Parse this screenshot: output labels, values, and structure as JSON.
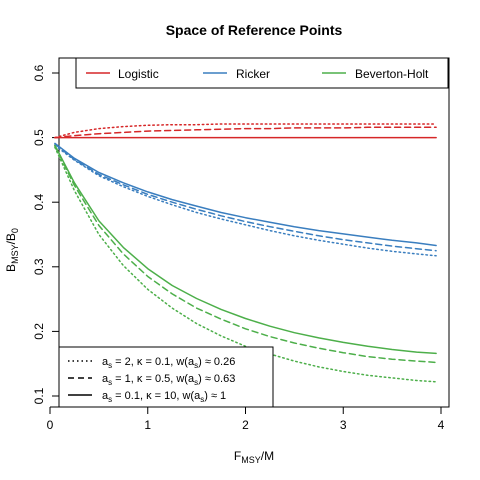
{
  "chart_data": {
    "type": "line",
    "title": "Space of Reference Points",
    "xlabel": "F_MSY/M",
    "ylabel": "B_MSY/B_0",
    "xlim": [
      0,
      4
    ],
    "ylim": [
      0.1,
      0.6
    ],
    "xticks": [
      "0",
      "1",
      "2",
      "3",
      "4"
    ],
    "yticks": [
      "0.1",
      "0.2",
      "0.3",
      "0.4",
      "0.5",
      "0.6"
    ],
    "x": [
      0.05,
      0.25,
      0.5,
      0.75,
      1.0,
      1.25,
      1.5,
      1.75,
      2.0,
      2.25,
      2.5,
      2.75,
      3.0,
      3.25,
      3.5,
      3.75,
      3.95
    ],
    "legend_models": {
      "position": "top",
      "entries": [
        {
          "name": "Logistic",
          "color": "#d62728"
        },
        {
          "name": "Ricker",
          "color": "#3a7ebf"
        },
        {
          "name": "Beverton-Holt",
          "color": "#4daf4a"
        }
      ]
    },
    "legend_linetypes": {
      "position": "bottom-left",
      "entries": [
        {
          "style": "dotted",
          "a": "2",
          "kappa": "0.1",
          "w": "0.26"
        },
        {
          "style": "dashed",
          "a": "1",
          "kappa": "0.5",
          "w": "0.63"
        },
        {
          "style": "solid",
          "a": "0.1",
          "kappa": "10",
          "w": "1"
        }
      ]
    },
    "series": [
      {
        "model": "Logistic",
        "style": "solid",
        "values": [
          0.5,
          0.5,
          0.5,
          0.5,
          0.5,
          0.5,
          0.5,
          0.5,
          0.5,
          0.5,
          0.5,
          0.5,
          0.5,
          0.5,
          0.5,
          0.5,
          0.5
        ]
      },
      {
        "model": "Logistic",
        "style": "dashed",
        "values": [
          0.5,
          0.503,
          0.506,
          0.508,
          0.51,
          0.511,
          0.512,
          0.513,
          0.514,
          0.514,
          0.515,
          0.515,
          0.515,
          0.516,
          0.516,
          0.516,
          0.516
        ]
      },
      {
        "model": "Logistic",
        "style": "dotted",
        "values": [
          0.5,
          0.508,
          0.514,
          0.517,
          0.519,
          0.52,
          0.52,
          0.521,
          0.521,
          0.521,
          0.521,
          0.521,
          0.521,
          0.521,
          0.521,
          0.521,
          0.521
        ]
      },
      {
        "model": "Ricker",
        "style": "solid",
        "values": [
          0.491,
          0.468,
          0.446,
          0.43,
          0.416,
          0.404,
          0.394,
          0.384,
          0.376,
          0.369,
          0.362,
          0.356,
          0.351,
          0.346,
          0.341,
          0.337,
          0.333
        ]
      },
      {
        "model": "Ricker",
        "style": "dashed",
        "values": [
          0.49,
          0.466,
          0.443,
          0.427,
          0.412,
          0.4,
          0.389,
          0.379,
          0.37,
          0.362,
          0.355,
          0.348,
          0.342,
          0.337,
          0.332,
          0.328,
          0.325
        ]
      },
      {
        "model": "Ricker",
        "style": "dotted",
        "values": [
          0.488,
          0.465,
          0.441,
          0.424,
          0.409,
          0.396,
          0.384,
          0.374,
          0.365,
          0.356,
          0.348,
          0.341,
          0.335,
          0.329,
          0.324,
          0.32,
          0.317
        ]
      },
      {
        "model": "Beverton-Holt",
        "style": "solid",
        "values": [
          0.488,
          0.43,
          0.371,
          0.33,
          0.297,
          0.271,
          0.251,
          0.234,
          0.22,
          0.208,
          0.198,
          0.19,
          0.183,
          0.177,
          0.172,
          0.168,
          0.166
        ]
      },
      {
        "model": "Beverton-Holt",
        "style": "dashed",
        "values": [
          0.487,
          0.426,
          0.364,
          0.32,
          0.285,
          0.258,
          0.236,
          0.219,
          0.204,
          0.192,
          0.182,
          0.174,
          0.167,
          0.161,
          0.157,
          0.154,
          0.152
        ]
      },
      {
        "model": "Beverton-Holt",
        "style": "dotted",
        "values": [
          0.485,
          0.418,
          0.35,
          0.302,
          0.265,
          0.236,
          0.212,
          0.193,
          0.177,
          0.165,
          0.154,
          0.145,
          0.138,
          0.132,
          0.128,
          0.124,
          0.122
        ]
      }
    ]
  }
}
